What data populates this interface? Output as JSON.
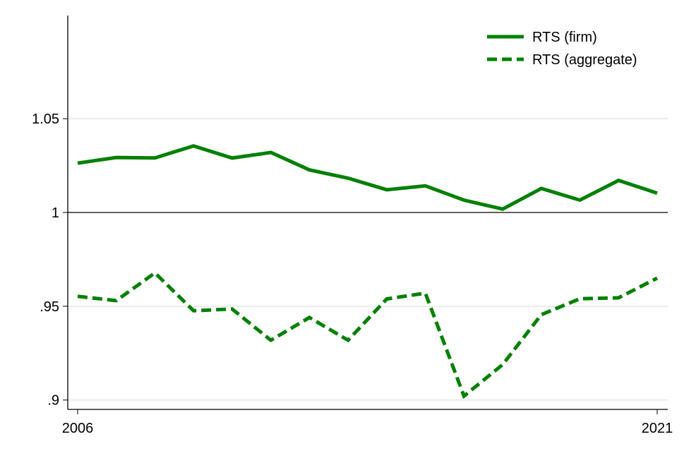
{
  "chart_data": {
    "type": "line",
    "title": "",
    "xlabel": "",
    "ylabel": "",
    "x": [
      2006,
      2007,
      2008,
      2009,
      2010,
      2011,
      2012,
      2013,
      2014,
      2015,
      2016,
      2017,
      2018,
      2019,
      2020,
      2021
    ],
    "xlim": [
      2006,
      2021
    ],
    "ylim": [
      0.895,
      1.105
    ],
    "x_ticks": [
      2006,
      2021
    ],
    "x_tick_labels": [
      "2006",
      "2021"
    ],
    "y_ticks": [
      0.9,
      0.95,
      1,
      1.05
    ],
    "y_tick_labels": [
      ".9",
      ".95",
      "1",
      "1.05"
    ],
    "grid": true,
    "reference_line": 1,
    "legend_position": "top-right",
    "series": [
      {
        "name": "RTS (firm)",
        "style": "solid",
        "color": "#008000",
        "values": [
          1.0263,
          1.0293,
          1.0291,
          1.0355,
          1.029,
          1.032,
          1.0227,
          1.0183,
          1.0121,
          1.0142,
          1.0066,
          1.0018,
          1.0128,
          1.0066,
          1.0171,
          1.0103
        ]
      },
      {
        "name": "RTS (aggregate)",
        "style": "dashed",
        "color": "#008000",
        "values": [
          0.9553,
          0.953,
          0.9678,
          0.9476,
          0.9485,
          0.9319,
          0.944,
          0.9319,
          0.9539,
          0.957,
          0.9021,
          0.9189,
          0.9455,
          0.954,
          0.9545,
          0.965
        ]
      }
    ]
  }
}
